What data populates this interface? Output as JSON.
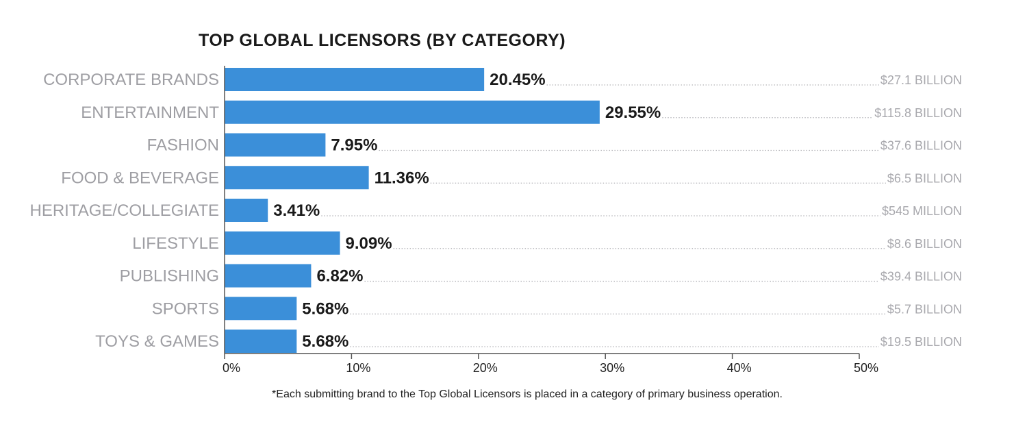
{
  "chart_data": {
    "type": "bar",
    "orientation": "horizontal",
    "title": "TOP GLOBAL LICENSORS (BY CATEGORY)",
    "categories": [
      "CORPORATE BRANDS",
      "ENTERTAINMENT",
      "FASHION",
      "FOOD & BEVERAGE",
      "HERITAGE/COLLEGIATE",
      "LIFESTYLE",
      "PUBLISHING",
      "SPORTS",
      "TOYS & GAMES"
    ],
    "values": [
      20.45,
      29.55,
      7.95,
      11.36,
      3.41,
      9.09,
      6.82,
      5.68,
      5.68
    ],
    "value_labels": [
      "20.45%",
      "29.55%",
      "7.95%",
      "11.36%",
      "3.41%",
      "9.09%",
      "6.82%",
      "5.68%",
      "5.68%"
    ],
    "revenue_labels": [
      "$27.1 BILLION",
      "$115.8 BILLION",
      "$37.6 BILLION",
      "$6.5 BILLION",
      "$545 MILLION",
      "$8.6 BILLION",
      "$39.4 BILLION",
      "$5.7 BILLION",
      "$19.5 BILLION"
    ],
    "xlim": [
      0,
      50
    ],
    "x_ticks": [
      0,
      10,
      20,
      30,
      40,
      50
    ],
    "x_tick_labels": [
      "0%",
      "10%",
      "20%",
      "30%",
      "40%",
      "50%"
    ],
    "xlabel": "",
    "ylabel": "",
    "grid": false,
    "bar_color": "#3b8fd9",
    "footnote": "*Each submitting brand to the Top Global Licensors is placed in a category of primary business operation."
  }
}
